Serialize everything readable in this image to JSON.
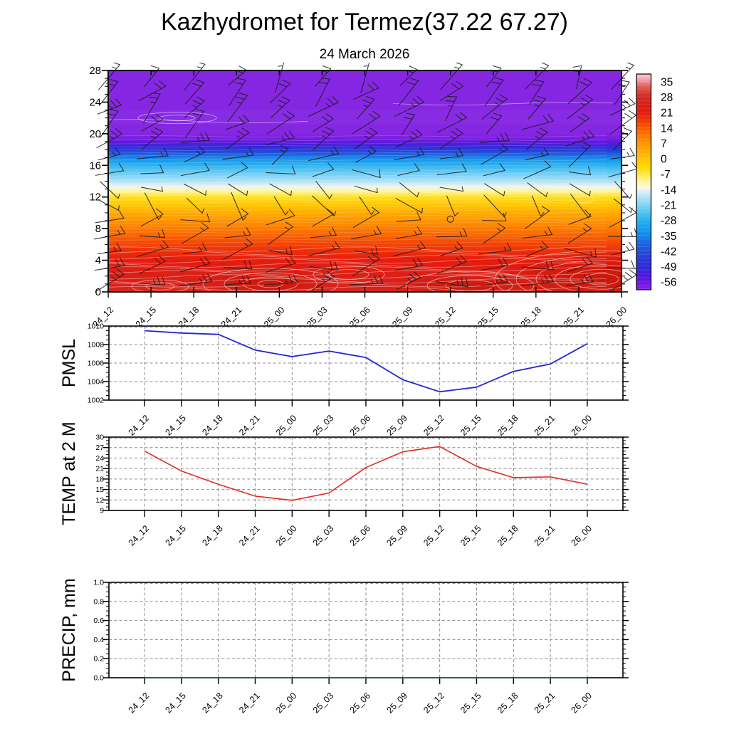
{
  "header": {
    "title": "Kazhydromet for Termez(37.22 67.27)",
    "subtitle": "24 March 2026"
  },
  "time_labels": [
    "24_12",
    "24_15",
    "24_18",
    "24_21",
    "25_00",
    "25_03",
    "25_06",
    "25_09",
    "25_12",
    "25_15",
    "25_18",
    "25_21",
    "26_00"
  ],
  "colors": {
    "pmsl_line": "#2424d6",
    "temp_line": "#e32a23",
    "precip_line": "#1d6b27",
    "grid": "#8c8c8c",
    "axis": "#000000",
    "barb": "#1a1a1a",
    "contour": "#ffffff"
  },
  "chart_data": [
    {
      "type": "heatmap",
      "name": "temperature-wind-height-time-cross-section",
      "x": [
        "24_12",
        "24_15",
        "24_18",
        "24_21",
        "25_00",
        "25_03",
        "25_06",
        "25_09",
        "25_12",
        "25_15",
        "25_18",
        "25_21",
        "26_00"
      ],
      "ylim": [
        0,
        28
      ],
      "yticks": [
        0,
        4,
        8,
        12,
        16,
        20,
        24,
        28
      ],
      "ytick_minor_step": 1,
      "colorbar_ticks": [
        35,
        28,
        21,
        14,
        7,
        0,
        -7,
        -14,
        -21,
        -28,
        -35,
        -42,
        -49,
        -56
      ],
      "colorbar_range": [
        38.5,
        -59.5
      ],
      "color_scale": [
        [
          38.5,
          "#f8ccd8"
        ],
        [
          36,
          "#f0a4b0"
        ],
        [
          33,
          "#e2625f"
        ],
        [
          30,
          "#d73c36"
        ],
        [
          28,
          "#d62826"
        ],
        [
          24,
          "#da2017"
        ],
        [
          21,
          "#e61c0e"
        ],
        [
          17,
          "#f03c08"
        ],
        [
          14,
          "#f85c03"
        ],
        [
          10,
          "#fd7f00"
        ],
        [
          7,
          "#ff9400"
        ],
        [
          3,
          "#ffae00"
        ],
        [
          0,
          "#ffc400"
        ],
        [
          -4,
          "#ffd900"
        ],
        [
          -7,
          "#ffe74a"
        ],
        [
          -10,
          "#fff59a"
        ],
        [
          -12.5,
          "#fdfbce"
        ],
        [
          -13.8,
          "#f2f7ee"
        ],
        [
          -15.5,
          "#cfecfa"
        ],
        [
          -18,
          "#a9e0f8"
        ],
        [
          -21,
          "#84d4f6"
        ],
        [
          -24.5,
          "#4ec3f2"
        ],
        [
          -28,
          "#28afee"
        ],
        [
          -31.5,
          "#189ceb"
        ],
        [
          -35,
          "#1585e8"
        ],
        [
          -38.5,
          "#1d64e1"
        ],
        [
          -42,
          "#234edb"
        ],
        [
          -45.5,
          "#2a39d5"
        ],
        [
          -49,
          "#2e2cd7"
        ],
        [
          -52,
          "#4220da"
        ],
        [
          -54.5,
          "#5c19dd"
        ],
        [
          -56.5,
          "#7118df"
        ],
        [
          -58,
          "#7d1fe0"
        ],
        [
          -59.5,
          "#8527e2"
        ]
      ],
      "temp_profile_by_height_km": [
        [
          0,
          26
        ],
        [
          1,
          25.2
        ],
        [
          2,
          24
        ],
        [
          3,
          22.5
        ],
        [
          4,
          21
        ],
        [
          5,
          19
        ],
        [
          6,
          16.5
        ],
        [
          7,
          13.5
        ],
        [
          8,
          10.5
        ],
        [
          9,
          7
        ],
        [
          10,
          3.5
        ],
        [
          11,
          -0.5
        ],
        [
          12,
          -5.5
        ],
        [
          12.7,
          -10
        ],
        [
          13.3,
          -14
        ],
        [
          14,
          -17.5
        ],
        [
          15,
          -22.5
        ],
        [
          16,
          -27.5
        ],
        [
          16.7,
          -32
        ],
        [
          17.3,
          -38
        ],
        [
          17.9,
          -45
        ],
        [
          18.4,
          -50
        ],
        [
          18.9,
          -54.5
        ],
        [
          19.4,
          -57.5
        ],
        [
          20,
          -59.5
        ],
        [
          28,
          -60.5
        ]
      ],
      "wind_rows": [
        {
          "height_km": 1,
          "dir_deg": 10,
          "full_barbs": 2,
          "half_barbs": 1,
          "len": 46
        },
        {
          "height_km": 3,
          "dir_deg": 12,
          "full_barbs": 2,
          "half_barbs": 0,
          "len": 46
        },
        {
          "height_km": 5,
          "dir_deg": 8,
          "full_barbs": 1,
          "half_barbs": 1,
          "len": 44
        },
        {
          "height_km": 7,
          "dir_deg": 14,
          "full_barbs": 1,
          "half_barbs": 1,
          "len": 44
        },
        {
          "height_km": 9,
          "dir_deg": 20,
          "full_barbs": 1,
          "half_barbs": 0,
          "len": 42
        },
        {
          "height_km": 11,
          "dir_deg": -52,
          "full_barbs": 0,
          "half_barbs": 1,
          "len": 40
        },
        {
          "height_km": 13,
          "dir_deg": -30,
          "full_barbs": 0,
          "half_barbs": 1,
          "len": 36
        },
        {
          "height_km": 15,
          "dir_deg": 8,
          "full_barbs": 1,
          "half_barbs": 0,
          "len": 40
        },
        {
          "height_km": 17,
          "dir_deg": 20,
          "full_barbs": 1,
          "half_barbs": 1,
          "len": 42
        },
        {
          "height_km": 19,
          "dir_deg": 28,
          "full_barbs": 2,
          "half_barbs": 1,
          "len": 44
        },
        {
          "height_km": 21,
          "dir_deg": 36,
          "full_barbs": 2,
          "half_barbs": 0,
          "len": 44
        },
        {
          "height_km": 23,
          "dir_deg": 42,
          "full_barbs": 2,
          "half_barbs": 1,
          "len": 46
        },
        {
          "height_km": 25,
          "dir_deg": 46,
          "full_barbs": 2,
          "half_barbs": 0,
          "len": 46
        },
        {
          "height_km": 27,
          "dir_deg": 55,
          "full_barbs": 1,
          "half_barbs": 1,
          "len": 44
        }
      ],
      "calm_marker": {
        "time_index": 8,
        "height_km": 9.2
      }
    },
    {
      "type": "line",
      "name": "pmsl",
      "ylabel": "PMSL",
      "x": [
        "24_12",
        "24_15",
        "24_18",
        "24_21",
        "25_00",
        "25_03",
        "25_06",
        "25_09",
        "25_12",
        "25_15",
        "25_18",
        "25_21",
        "26_00"
      ],
      "values": [
        1009.5,
        1009.25,
        1009.1,
        1007.4,
        1006.7,
        1007.3,
        1006.6,
        1004.2,
        1002.9,
        1003.4,
        1005.1,
        1005.9,
        1008.1
      ],
      "ylim": [
        1002,
        1010
      ],
      "yticks": [
        1002,
        1004,
        1006,
        1008,
        1010
      ],
      "ytick_minor_step": 0.5
    },
    {
      "type": "line",
      "name": "temp-at-2m",
      "ylabel": "TEMP at 2 M",
      "x": [
        "24_12",
        "24_15",
        "24_18",
        "24_21",
        "25_00",
        "25_03",
        "25_06",
        "25_09",
        "25_12",
        "25_15",
        "25_18",
        "25_21",
        "26_00"
      ],
      "values": [
        26.0,
        20.3,
        16.5,
        13.1,
        11.9,
        14.0,
        21.3,
        25.8,
        27.3,
        21.6,
        18.4,
        18.6,
        16.5
      ],
      "ylim": [
        9,
        30
      ],
      "yticks": [
        9,
        12,
        15,
        18,
        21,
        24,
        27,
        30
      ],
      "ytick_minor_step": 1
    },
    {
      "type": "line",
      "name": "precip",
      "ylabel": "PRECIP, mm",
      "x": [
        "24_12",
        "24_15",
        "24_18",
        "24_21",
        "25_00",
        "25_03",
        "25_06",
        "25_09",
        "25_12",
        "25_15",
        "25_18",
        "25_21",
        "26_00"
      ],
      "values": [
        0,
        0,
        0,
        0,
        0,
        0,
        0,
        0,
        0,
        0,
        0,
        0,
        0
      ],
      "ylim": [
        0,
        1
      ],
      "ytick_labels": [
        "0.0",
        "0.2",
        "0.4",
        "0.6",
        "0.8",
        "1.0"
      ],
      "yticks": [
        0,
        0.2,
        0.4,
        0.6,
        0.8,
        1.0
      ],
      "ytick_minor_step": 0.05
    }
  ]
}
